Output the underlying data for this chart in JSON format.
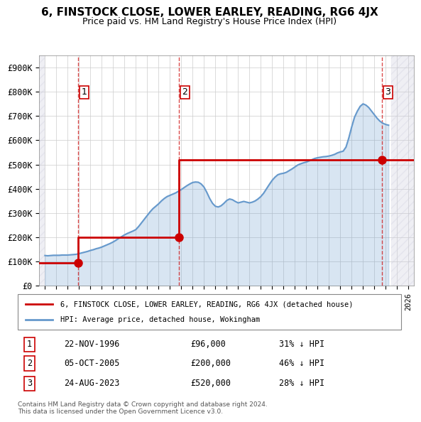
{
  "title": "6, FINSTOCK CLOSE, LOWER EARLEY, READING, RG6 4JX",
  "subtitle": "Price paid vs. HM Land Registry's House Price Index (HPI)",
  "sales": [
    {
      "num": 1,
      "date_str": "22-NOV-1996",
      "date_x": 1996.9,
      "price": 96000
    },
    {
      "num": 2,
      "date_str": "05-OCT-2005",
      "date_x": 2005.76,
      "price": 200000
    },
    {
      "num": 3,
      "date_str": "24-AUG-2023",
      "date_x": 2023.65,
      "price": 520000
    }
  ],
  "legend_line1": "6, FINSTOCK CLOSE, LOWER EARLEY, READING, RG6 4JX (detached house)",
  "legend_line2": "HPI: Average price, detached house, Wokingham",
  "table_rows": [
    {
      "num": 1,
      "date": "22-NOV-1996",
      "price": "£96,000",
      "hpi": "31% ↓ HPI"
    },
    {
      "num": 2,
      "date": "05-OCT-2005",
      "price": "£200,000",
      "hpi": "46% ↓ HPI"
    },
    {
      "num": 3,
      "date": "24-AUG-2023",
      "price": "£520,000",
      "hpi": "28% ↓ HPI"
    }
  ],
  "footer": "Contains HM Land Registry data © Crown copyright and database right 2024.\nThis data is licensed under the Open Government Licence v3.0.",
  "red_color": "#cc0000",
  "blue_color": "#6699cc",
  "hatch_color": "#ccccdd",
  "xlim": [
    1993.5,
    2026.5
  ],
  "ylim": [
    0,
    950000
  ],
  "yticks": [
    0,
    100000,
    200000,
    300000,
    400000,
    500000,
    600000,
    700000,
    800000,
    900000
  ],
  "ytick_labels": [
    "£0",
    "£100K",
    "£200K",
    "£300K",
    "£400K",
    "£500K",
    "£600K",
    "£700K",
    "£800K",
    "£900K"
  ],
  "xtick_start": 1994,
  "xtick_end": 2026,
  "hpi_data": {
    "x": [
      1994,
      1994.25,
      1994.5,
      1994.75,
      1995,
      1995.25,
      1995.5,
      1995.75,
      1996,
      1996.25,
      1996.5,
      1996.75,
      1997,
      1997.25,
      1997.5,
      1997.75,
      1998,
      1998.25,
      1998.5,
      1998.75,
      1999,
      1999.25,
      1999.5,
      1999.75,
      2000,
      2000.25,
      2000.5,
      2000.75,
      2001,
      2001.25,
      2001.5,
      2001.75,
      2002,
      2002.25,
      2002.5,
      2002.75,
      2003,
      2003.25,
      2003.5,
      2003.75,
      2004,
      2004.25,
      2004.5,
      2004.75,
      2005,
      2005.25,
      2005.5,
      2005.75,
      2006,
      2006.25,
      2006.5,
      2006.75,
      2007,
      2007.25,
      2007.5,
      2007.75,
      2008,
      2008.25,
      2008.5,
      2008.75,
      2009,
      2009.25,
      2009.5,
      2009.75,
      2010,
      2010.25,
      2010.5,
      2010.75,
      2011,
      2011.25,
      2011.5,
      2011.75,
      2012,
      2012.25,
      2012.5,
      2012.75,
      2013,
      2013.25,
      2013.5,
      2013.75,
      2014,
      2014.25,
      2014.5,
      2014.75,
      2015,
      2015.25,
      2015.5,
      2015.75,
      2016,
      2016.25,
      2016.5,
      2016.75,
      2017,
      2017.25,
      2017.5,
      2017.75,
      2018,
      2018.25,
      2018.5,
      2018.75,
      2019,
      2019.25,
      2019.5,
      2019.75,
      2020,
      2020.25,
      2020.5,
      2020.75,
      2021,
      2021.25,
      2021.5,
      2021.75,
      2022,
      2022.25,
      2022.5,
      2022.75,
      2023,
      2023.25,
      2023.5,
      2023.75,
      2024,
      2024.25
    ],
    "y": [
      125000,
      124000,
      125000,
      126000,
      126000,
      126000,
      127000,
      127000,
      127000,
      128000,
      129000,
      130000,
      133000,
      136000,
      139000,
      142000,
      146000,
      149000,
      153000,
      156000,
      160000,
      165000,
      170000,
      175000,
      181000,
      188000,
      196000,
      203000,
      210000,
      216000,
      221000,
      226000,
      232000,
      245000,
      260000,
      275000,
      290000,
      305000,
      318000,
      328000,
      338000,
      350000,
      360000,
      368000,
      373000,
      378000,
      383000,
      390000,
      397000,
      405000,
      413000,
      420000,
      426000,
      428000,
      427000,
      420000,
      407000,
      385000,
      360000,
      340000,
      328000,
      325000,
      330000,
      340000,
      352000,
      358000,
      355000,
      348000,
      342000,
      345000,
      348000,
      345000,
      342000,
      345000,
      350000,
      358000,
      368000,
      382000,
      400000,
      418000,
      435000,
      448000,
      458000,
      462000,
      464000,
      468000,
      475000,
      482000,
      490000,
      498000,
      503000,
      507000,
      510000,
      515000,
      520000,
      525000,
      528000,
      530000,
      532000,
      533000,
      535000,
      538000,
      542000,
      548000,
      552000,
      555000,
      572000,
      610000,
      655000,
      695000,
      720000,
      740000,
      750000,
      745000,
      735000,
      720000,
      705000,
      690000,
      678000,
      670000,
      665000,
      662000
    ]
  },
  "red_line_data": {
    "x": [
      1993.5,
      1996.9,
      1996.9,
      2005.76,
      2005.76,
      2023.65,
      2023.65,
      2026.5
    ],
    "y": [
      96000,
      96000,
      200000,
      200000,
      520000,
      520000,
      530000,
      530000
    ]
  }
}
